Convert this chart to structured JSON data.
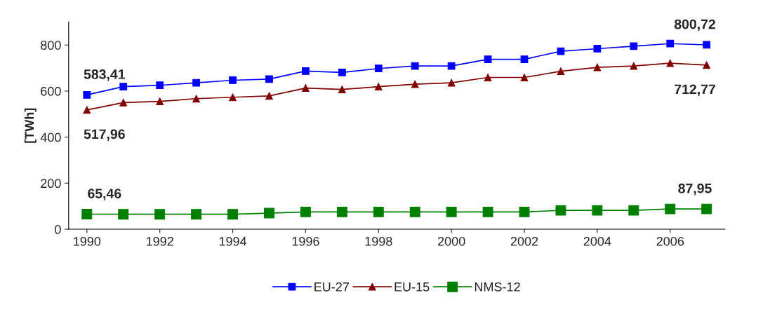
{
  "chart_data": {
    "type": "line",
    "ylabel": "[TWh]",
    "x": [
      1990,
      1991,
      1992,
      1993,
      1994,
      1995,
      1996,
      1997,
      1998,
      1999,
      2000,
      2001,
      2002,
      2003,
      2004,
      2005,
      2006,
      2007
    ],
    "series": [
      {
        "name": "EU-27",
        "color": "#0000ff",
        "marker": "square",
        "values": [
          583.41,
          619,
          625,
          636,
          647,
          652,
          687,
          681,
          698,
          709,
          709,
          738,
          738,
          773,
          784,
          795,
          806,
          800.72
        ],
        "value_labels": [
          "583,41",
          null,
          null,
          null,
          null,
          null,
          null,
          null,
          null,
          null,
          null,
          null,
          null,
          null,
          null,
          null,
          null,
          "800,72"
        ]
      },
      {
        "name": "EU-15",
        "color": "#800000",
        "marker": "triangle",
        "values": [
          517.96,
          550,
          555,
          567,
          573,
          579,
          613,
          607,
          619,
          630,
          636,
          659,
          659,
          686,
          703,
          709,
          721,
          712.77
        ],
        "value_labels": [
          "517,96",
          null,
          null,
          null,
          null,
          null,
          null,
          null,
          null,
          null,
          null,
          null,
          null,
          null,
          null,
          null,
          null,
          "712,77"
        ]
      },
      {
        "name": "NMS-12",
        "color": "#008000",
        "marker": "square",
        "values": [
          65.46,
          65,
          65,
          65,
          65,
          70,
          75,
          75,
          75,
          75,
          75,
          75,
          75,
          82,
          82,
          82,
          88,
          87.95
        ],
        "value_labels": [
          "65,46",
          null,
          null,
          null,
          null,
          null,
          null,
          null,
          null,
          null,
          null,
          null,
          null,
          null,
          null,
          null,
          null,
          "87,95"
        ]
      }
    ],
    "xlim": [
      1989.5,
      2007.5
    ],
    "xticks": [
      1990,
      1992,
      1994,
      1996,
      1998,
      2000,
      2002,
      2004,
      2006
    ],
    "ylim": [
      0,
      900
    ],
    "yticks": [
      0,
      200,
      400,
      600,
      800
    ],
    "grid": false,
    "legend": "bottom"
  }
}
